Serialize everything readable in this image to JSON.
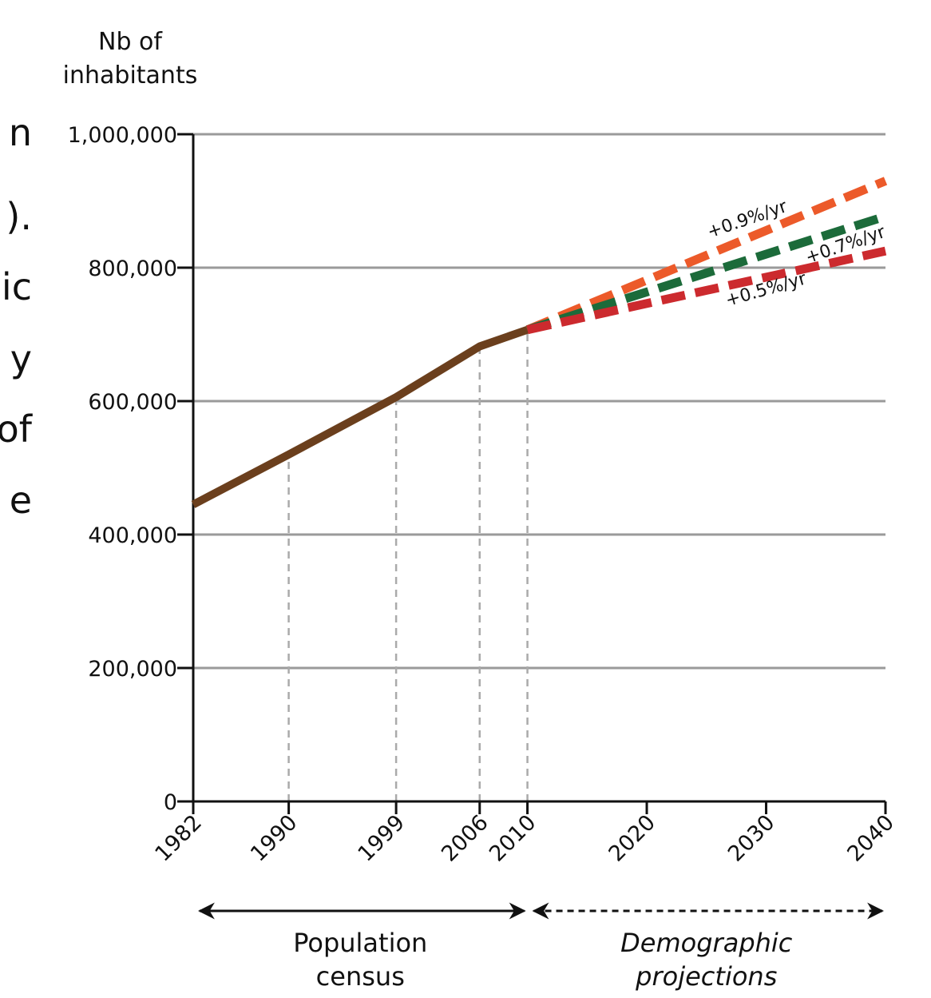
{
  "background_text": [
    "n",
    ").",
    "ic",
    "y",
    "of",
    "e"
  ],
  "chart_data": {
    "type": "line",
    "ylabel": [
      "Nb of",
      "inhabitants"
    ],
    "xlabel": "",
    "ylim": [
      0,
      1000000
    ],
    "xlim": [
      1982,
      2040
    ],
    "y_ticks": [
      {
        "value": 0,
        "label": "0"
      },
      {
        "value": 200000,
        "label": "200,000"
      },
      {
        "value": 400000,
        "label": "400,000"
      },
      {
        "value": 600000,
        "label": "600,000"
      },
      {
        "value": 800000,
        "label": "800,000"
      },
      {
        "value": 1000000,
        "label": "1,000,000"
      }
    ],
    "x_ticks": [
      {
        "value": 1982,
        "label": "1982"
      },
      {
        "value": 1990,
        "label": "1990"
      },
      {
        "value": 1999,
        "label": "1999"
      },
      {
        "value": 2006,
        "label": "2006"
      },
      {
        "value": 2010,
        "label": "2010"
      },
      {
        "value": 2020,
        "label": "2020"
      },
      {
        "value": 2030,
        "label": "2030"
      },
      {
        "value": 2040,
        "label": "2040"
      }
    ],
    "grid": "horizontal",
    "census_markers": [
      1990,
      1999,
      2006,
      2010
    ],
    "series": [
      {
        "name": "",
        "style": "solid",
        "color": "#6b3f1d",
        "points": [
          [
            1982,
            445000
          ],
          [
            1990,
            520000
          ],
          [
            1999,
            606000
          ],
          [
            2006,
            682000
          ],
          [
            2010,
            707000
          ]
        ]
      },
      {
        "name": "+0.9%/yr",
        "style": "dashed",
        "color": "#ec5a2a",
        "points": [
          [
            2010,
            707000
          ],
          [
            2040,
            930000
          ]
        ]
      },
      {
        "name": "+0.7%/yr",
        "style": "dashed",
        "color": "#1c6b3a",
        "points": [
          [
            2010,
            707000
          ],
          [
            2040,
            877000
          ]
        ]
      },
      {
        "name": "+0.5%/yr",
        "style": "dashed",
        "color": "#cc2a2e",
        "points": [
          [
            2010,
            707000
          ],
          [
            2040,
            825000
          ]
        ]
      }
    ],
    "periods": [
      {
        "lines": [
          "Population",
          "census"
        ],
        "from": 1982,
        "to": 2010,
        "style": "solid",
        "italic": false
      },
      {
        "lines": [
          "Demographic",
          "projections"
        ],
        "from": 2010,
        "to": 2040,
        "style": "dashed",
        "italic": true
      }
    ]
  }
}
